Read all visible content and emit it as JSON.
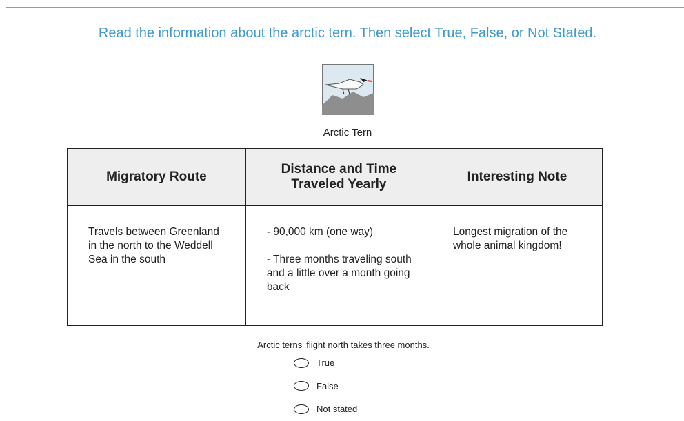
{
  "instruction": "Read the information about the arctic tern. Then select True, False, or Not Stated.",
  "image_caption": "Arctic Tern",
  "table": {
    "headers": [
      "Migratory Route",
      "Distance and Time Traveled Yearly",
      "Interesting Note"
    ],
    "rows": [
      [
        [
          "Travels between Greenland in the north to the Weddell Sea in the south"
        ],
        [
          "- 90,000 km (one way)",
          "- Three months traveling south and a little over a month going back"
        ],
        [
          "Longest migration of the whole animal kingdom!"
        ]
      ]
    ]
  },
  "question": "Arctic terns' flight north takes three months.",
  "options": [
    "True",
    "False",
    "Not stated"
  ]
}
